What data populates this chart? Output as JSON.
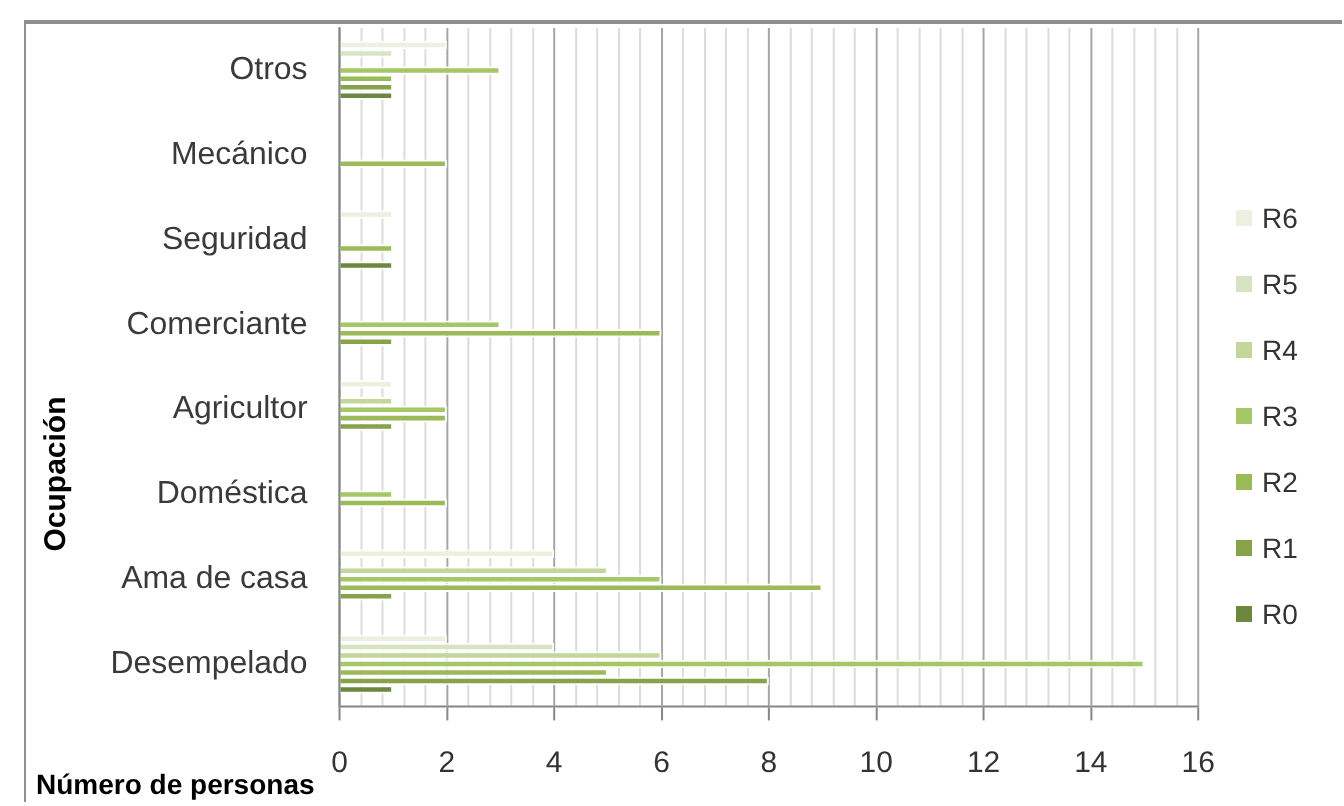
{
  "chart_data": {
    "type": "bar",
    "orientation": "horizontal",
    "xlabel": "Número de personas",
    "ylabel": "Ocupación",
    "categories": [
      "Otros",
      "Mecánico",
      "Seguridad",
      "Comerciante",
      "Agricultor",
      "Doméstica",
      "Ama de casa",
      "Desempelado"
    ],
    "series": [
      {
        "name": "R6",
        "color": "#ebf1de",
        "values": [
          2,
          null,
          1,
          null,
          1,
          null,
          4,
          2
        ]
      },
      {
        "name": "R5",
        "color": "#d7e4c4",
        "values": [
          1,
          null,
          null,
          null,
          null,
          null,
          null,
          4
        ]
      },
      {
        "name": "R4",
        "color": "#c3d69b",
        "values": [
          null,
          null,
          null,
          null,
          1,
          null,
          5,
          6
        ]
      },
      {
        "name": "R3",
        "color": "#a6c766",
        "values": [
          3,
          null,
          null,
          3,
          2,
          1,
          6,
          15
        ]
      },
      {
        "name": "R2",
        "color": "#9bbb59",
        "values": [
          1,
          2,
          1,
          6,
          2,
          2,
          9,
          5
        ]
      },
      {
        "name": "R1",
        "color": "#86a24b",
        "values": [
          1,
          null,
          null,
          1,
          1,
          null,
          1,
          8
        ]
      },
      {
        "name": "R0",
        "color": "#6b8740",
        "values": [
          1,
          null,
          1,
          null,
          null,
          null,
          null,
          1
        ]
      }
    ],
    "xlim": [
      0,
      16
    ],
    "xticks": [
      0,
      {
        "value": 0.4,
        "label": null
      },
      {
        "value": 0.8,
        "label": null
      },
      {
        "value": 1.2,
        "label": null
      },
      {
        "value": 1.6,
        "label": null
      },
      2,
      {
        "value": 2.4,
        "label": null
      },
      {
        "value": 2.8,
        "label": null
      },
      {
        "value": 3.2,
        "label": null
      },
      {
        "value": 3.6,
        "label": null
      },
      4,
      {
        "value": 4.4,
        "label": null
      },
      {
        "value": 4.8,
        "label": null
      },
      {
        "value": 5.2,
        "label": null
      },
      {
        "value": 5.6,
        "label": null
      },
      6,
      {
        "value": 6.4,
        "label": null
      },
      {
        "value": 6.8,
        "label": null
      },
      {
        "value": 7.2,
        "label": null
      },
      {
        "value": 7.6,
        "label": null
      },
      8,
      {
        "value": 8.4,
        "label": null
      },
      {
        "value": 8.8,
        "label": null
      },
      {
        "value": 9.2,
        "label": null
      },
      {
        "value": 9.6,
        "label": null
      },
      10,
      {
        "value": 10.4,
        "label": null
      },
      {
        "value": 10.8,
        "label": null
      },
      {
        "value": 11.2,
        "label": null
      },
      {
        "value": 11.6,
        "label": null
      },
      12,
      {
        "value": 12.4,
        "label": null
      },
      {
        "value": 12.8,
        "label": null
      },
      {
        "value": 13.2,
        "label": null
      },
      {
        "value": 13.6,
        "label": null
      },
      14,
      {
        "value": 14.4,
        "label": null
      },
      {
        "value": 14.8,
        "label": null
      },
      {
        "value": 15.2,
        "label": null
      },
      {
        "value": 15.6,
        "label": null
      },
      16
    ],
    "grid": "x",
    "legend": "right"
  }
}
